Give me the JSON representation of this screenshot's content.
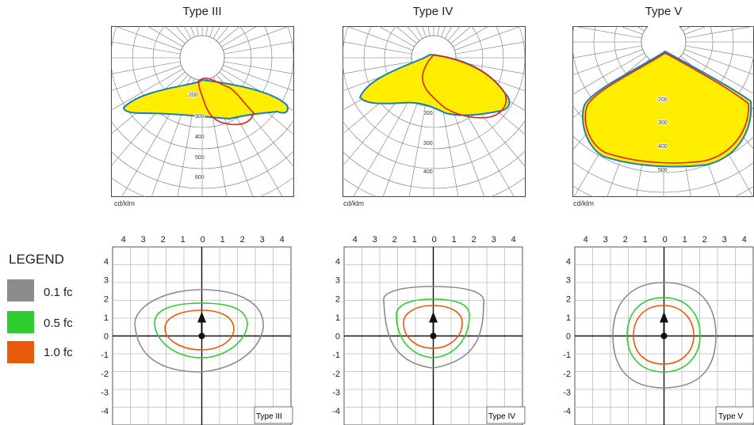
{
  "units_label": "cd/klm",
  "legend": {
    "title": "LEGEND",
    "items": [
      {
        "label": "0.1 fc",
        "color": "#8c8c8c"
      },
      {
        "label": "0.5 fc",
        "color": "#2ecc2e"
      },
      {
        "label": "1.0 fc",
        "color": "#e65a0a"
      }
    ]
  },
  "colors": {
    "fill": "#ffee00",
    "outline_a": "#1a7fb8",
    "outline_b": "#e02020",
    "iso_01": "#8c8c8c",
    "iso_05": "#2ecc2e",
    "iso_10": "#e65a0a"
  },
  "iso_axis": {
    "x_ticks": [
      "4",
      "3",
      "2",
      "1",
      "0",
      "1",
      "2",
      "3",
      "4"
    ],
    "y_ticks": [
      "4",
      "3",
      "2",
      "1",
      "0",
      "-1",
      "-2",
      "-3",
      "-4"
    ]
  },
  "panels": [
    {
      "title": "Type III",
      "box_label": "Type III",
      "polar_ticks": [
        "200",
        "300",
        "400",
        "500",
        "600"
      ]
    },
    {
      "title": "Type IV",
      "box_label": "Type IV",
      "polar_ticks": [
        "200",
        "300",
        "400"
      ]
    },
    {
      "title": "Type V",
      "box_label": "Type V",
      "polar_ticks": [
        "200",
        "300",
        "400",
        "500"
      ]
    }
  ]
}
